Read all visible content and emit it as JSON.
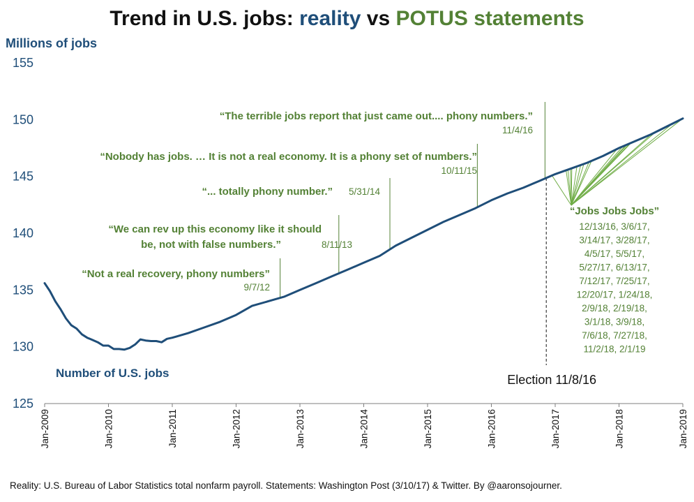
{
  "title": {
    "part1": "Trend in U.S. jobs: ",
    "part2": "reality",
    "part3": " vs ",
    "part4": "POTUS statements"
  },
  "colors": {
    "reality": "#1f4e79",
    "statements": "#538135",
    "axis": "#7f7f7f"
  },
  "footer": "Reality: U.S. Bureau of Labor Statistics total nonfarm payroll. Statements: Washington Post (3/10/17) & Twitter. By @aaronsojourner.",
  "chart_data": {
    "type": "line",
    "title": "Trend in U.S. jobs: reality vs POTUS statements",
    "ylabel": "Millions of jobs",
    "xlabel": "",
    "ylim": [
      125,
      155
    ],
    "yticks": [
      125,
      130,
      135,
      140,
      145,
      150,
      155
    ],
    "xlim": [
      2009.0,
      2019.0
    ],
    "xticks": [
      {
        "value": 2009,
        "label": "Jan-2009"
      },
      {
        "value": 2010,
        "label": "Jan-2010"
      },
      {
        "value": 2011,
        "label": "Jan-2011"
      },
      {
        "value": 2012,
        "label": "Jan-2012"
      },
      {
        "value": 2013,
        "label": "Jan-2013"
      },
      {
        "value": 2014,
        "label": "Jan-2014"
      },
      {
        "value": 2015,
        "label": "Jan-2015"
      },
      {
        "value": 2016,
        "label": "Jan-2016"
      },
      {
        "value": 2017,
        "label": "Jan-2017"
      },
      {
        "value": 2018,
        "label": "Jan-2018"
      },
      {
        "value": 2019,
        "label": "Jan-2019"
      }
    ],
    "series": [
      {
        "name": "Number of U.S. jobs",
        "x": [
          2009.0,
          2009.083,
          2009.167,
          2009.25,
          2009.333,
          2009.417,
          2009.5,
          2009.583,
          2009.667,
          2009.75,
          2009.833,
          2009.917,
          2010.0,
          2010.083,
          2010.167,
          2010.25,
          2010.333,
          2010.417,
          2010.5,
          2010.583,
          2010.667,
          2010.75,
          2010.833,
          2010.917,
          2011.0,
          2011.25,
          2011.5,
          2011.75,
          2012.0,
          2012.25,
          2012.5,
          2012.75,
          2013.0,
          2013.25,
          2013.5,
          2013.75,
          2014.0,
          2014.25,
          2014.5,
          2014.75,
          2015.0,
          2015.25,
          2015.5,
          2015.75,
          2016.0,
          2016.25,
          2016.5,
          2016.75,
          2017.0,
          2017.25,
          2017.5,
          2017.75,
          2018.0,
          2018.25,
          2018.5,
          2018.75,
          2019.0
        ],
        "y": [
          135.6,
          134.9,
          134.0,
          133.3,
          132.5,
          131.9,
          131.6,
          131.1,
          130.8,
          130.6,
          130.4,
          130.1,
          130.1,
          129.8,
          129.8,
          129.75,
          129.9,
          130.2,
          130.65,
          130.55,
          130.5,
          130.5,
          130.4,
          130.7,
          130.8,
          131.2,
          131.7,
          132.2,
          132.8,
          133.6,
          134.0,
          134.4,
          135.0,
          135.6,
          136.2,
          136.8,
          137.4,
          138.0,
          138.9,
          139.6,
          140.3,
          141.0,
          141.6,
          142.2,
          142.9,
          143.5,
          144.0,
          144.6,
          145.2,
          145.7,
          146.2,
          146.8,
          147.5,
          148.1,
          148.7,
          149.4,
          150.1
        ]
      }
    ],
    "series_label": "Number of U.S. jobs",
    "statements": [
      {
        "quote": "“Not a real recovery, phony numbers”",
        "date": "9/7/12",
        "x": 2012.69
      },
      {
        "quote_line1": "“We can rev up this economy like it should",
        "quote_line2": "be, not with false numbers.”",
        "date": "8/11/13",
        "x": 2013.61
      },
      {
        "quote": "“... totally phony number.”",
        "date": "5/31/14",
        "x": 2014.41
      },
      {
        "quote": "“Nobody has jobs. … It is not a real economy. It is a phony set of numbers.”",
        "date": "10/11/15",
        "x": 2015.78
      },
      {
        "quote": "“The terrible jobs report that just came out.... phony numbers.”",
        "date": "11/4/16",
        "x": 2016.84
      }
    ],
    "jobs_jobs_jobs": {
      "quote": "“Jobs Jobs Jobs”",
      "dates": [
        "12/13/16, 3/6/17,",
        "3/14/17, 3/28/17,",
        "4/5/17, 5/5/17,",
        "5/27/17, 6/13/17,",
        "7/12/17, 7/25/17,",
        "12/20/17, 1/24/18,",
        "2/9/18, 2/19/18,",
        "3/1/18, 3/9/18,",
        "7/6/18, 7/27/18,",
        "11/2/18, 2/1/19"
      ],
      "x_targets": [
        2016.95,
        2017.17,
        2017.2,
        2017.24,
        2017.26,
        2017.34,
        2017.4,
        2017.45,
        2017.53,
        2017.57,
        2017.97,
        2018.06,
        2018.11,
        2018.13,
        2018.17,
        2018.19,
        2018.51,
        2018.57,
        2018.84,
        2019.08
      ]
    },
    "election": {
      "label": "Election 11/8/16",
      "x": 2016.86
    }
  }
}
